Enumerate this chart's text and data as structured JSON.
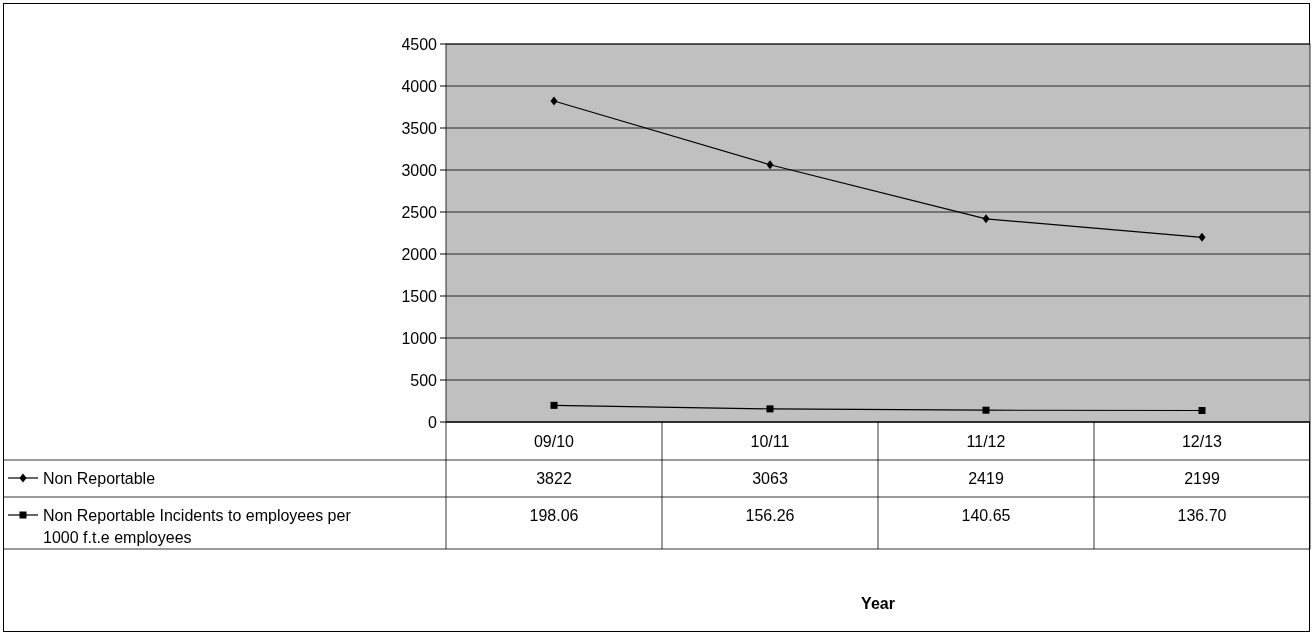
{
  "chart_data": {
    "type": "line",
    "annotations": [
      "Year"
    ],
    "categories": [
      "09/10",
      "10/11",
      "11/12",
      "12/13"
    ],
    "series": [
      {
        "name": "Non Reportable",
        "color": "#000000",
        "marker": "diamond",
        "values": [
          3822,
          3063,
          2419,
          2199
        ],
        "value_labels": [
          "3822",
          "3063",
          "2419",
          "2199"
        ]
      },
      {
        "name": "Non Reportable Incidents to employees per 1000 f.t.e employees",
        "color": "#000000",
        "marker": "square",
        "values": [
          198.06,
          156.26,
          140.65,
          136.7
        ],
        "value_labels": [
          "198.06",
          "156.26",
          "140.65",
          "136.70"
        ]
      }
    ],
    "ylim": [
      0,
      4500
    ],
    "yticks": [
      0,
      500,
      1000,
      1500,
      2000,
      2500,
      3000,
      3500,
      4000,
      4500
    ],
    "grid": "y",
    "legend": "bottom"
  }
}
